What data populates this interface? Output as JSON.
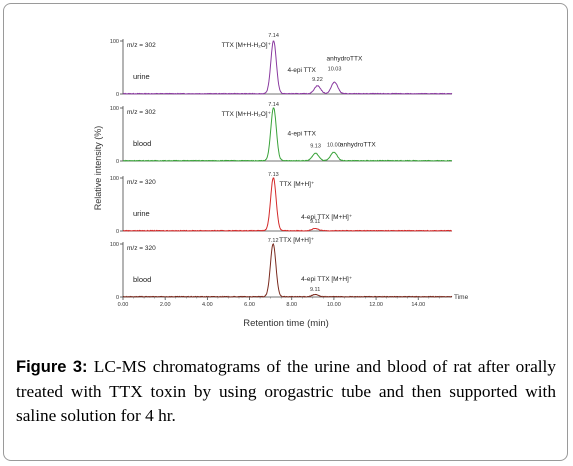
{
  "figure": {
    "label": "Figure 3:",
    "caption": " LC-MS chromatograms of the urine and blood of rat after orally treated with TTX toxin by using orogastric tube and then supported with saline solution for 4 hr."
  },
  "chart_data": {
    "type": "line",
    "xlabel": "Retention time (min)",
    "ylabel": "Relative intensity (%)",
    "xlim": [
      0,
      15.6
    ],
    "ylim": [
      0,
      100
    ],
    "x_ticks": [
      "0.00",
      "2.00",
      "4.00",
      "6.00",
      "8.00",
      "10.00",
      "12.00",
      "14.00"
    ],
    "x_tick_values": [
      0,
      2,
      4,
      6,
      8,
      10,
      12,
      14
    ],
    "x_unit_label": "Time",
    "y_tick_labels": [
      "100",
      "0"
    ],
    "panels": [
      {
        "mz": "m/z = 302",
        "sample": "urine",
        "color": "#8a3aa0",
        "peaks": [
          {
            "rt": 7.14,
            "height": 100,
            "label": "TTX [M+H-H₂O]⁺",
            "rt_label": "7.14"
          },
          {
            "rt": 9.22,
            "height": 15,
            "label": "4-epi TTX",
            "rt_label": "9.22"
          },
          {
            "rt": 10.03,
            "height": 22,
            "label": "anhydroTTX",
            "rt_label": "10.03"
          }
        ]
      },
      {
        "mz": "m/z = 302",
        "sample": "blood",
        "color": "#3aa33a",
        "peaks": [
          {
            "rt": 7.14,
            "height": 100,
            "label": "TTX [M+H-H₂O]⁺",
            "rt_label": "7.14"
          },
          {
            "rt": 9.13,
            "height": 14,
            "label": "4-epi TTX",
            "rt_label": "9.13"
          },
          {
            "rt": 10.0,
            "height": 16,
            "label": "anhydroTTX",
            "rt_label": "10.00"
          }
        ]
      },
      {
        "mz": "m/z = 320",
        "sample": "urine",
        "color": "#d42a2a",
        "peaks": [
          {
            "rt": 7.13,
            "height": 100,
            "label": "TTX [M+H]⁺",
            "rt_label": "7.13"
          },
          {
            "rt": 9.11,
            "height": 4,
            "label": "4-epi TTX [M+H]⁺",
            "rt_label": "9.11"
          }
        ]
      },
      {
        "mz": "m/z = 320",
        "sample": "blood",
        "color": "#7a2a1e",
        "peaks": [
          {
            "rt": 7.12,
            "height": 100,
            "label": "TTX [M+H]⁺",
            "rt_label": "7.12"
          },
          {
            "rt": 9.11,
            "height": 4,
            "label": "4-epi TTX [M+H]⁺",
            "rt_label": "9.11"
          }
        ]
      }
    ]
  }
}
